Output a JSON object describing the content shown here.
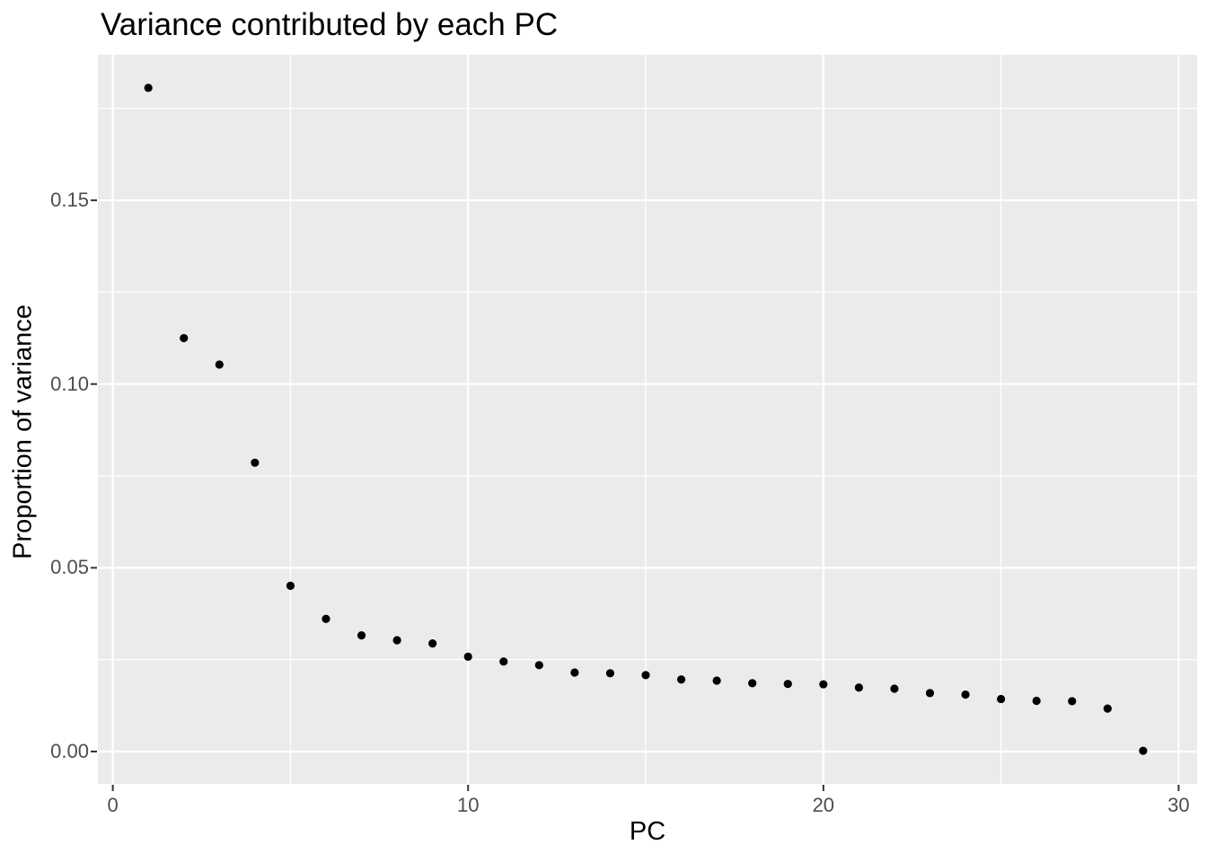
{
  "chart_data": {
    "type": "scatter",
    "title": "Variance contributed by each PC",
    "xlabel": "PC",
    "ylabel": "Proportion of variance",
    "legend_position": "none",
    "grid": true,
    "x": [
      1,
      2,
      3,
      4,
      5,
      6,
      7,
      8,
      9,
      10,
      11,
      12,
      13,
      14,
      15,
      16,
      17,
      18,
      19,
      20,
      21,
      22,
      23,
      24,
      25,
      26,
      27,
      28,
      29
    ],
    "values": [
      0.1806,
      0.1125,
      0.1053,
      0.0786,
      0.0451,
      0.0361,
      0.0316,
      0.0303,
      0.0294,
      0.0258,
      0.0245,
      0.0235,
      0.0215,
      0.0213,
      0.0208,
      0.0196,
      0.0193,
      0.0186,
      0.0184,
      0.0183,
      0.0174,
      0.0171,
      0.0159,
      0.0155,
      0.0143,
      0.0138,
      0.0137,
      0.0117,
      0.0002
    ],
    "xlim": [
      -0.42,
      30.52
    ],
    "ylim": [
      -0.0088,
      0.1896
    ],
    "x_ticks_major": {
      "values": [
        0,
        10,
        20,
        30
      ],
      "labels": [
        "0",
        "10",
        "20",
        "30"
      ]
    },
    "x_ticks_minor": [
      5,
      15,
      25
    ],
    "y_ticks_major": {
      "values": [
        0,
        0.05,
        0.1,
        0.15
      ],
      "labels": [
        "0.00",
        "0.05",
        "0.10",
        "0.15"
      ]
    },
    "y_ticks_minor": [
      0.025,
      0.075,
      0.125,
      0.175
    ],
    "colors": {
      "point": "#000000",
      "panel_background": "#EBEBEB",
      "grid_line": "#FFFFFF",
      "tick_mark": "#333333",
      "tick_label": "#4D4D4D",
      "title": "#000000",
      "page_background": "#FFFFFF"
    }
  }
}
